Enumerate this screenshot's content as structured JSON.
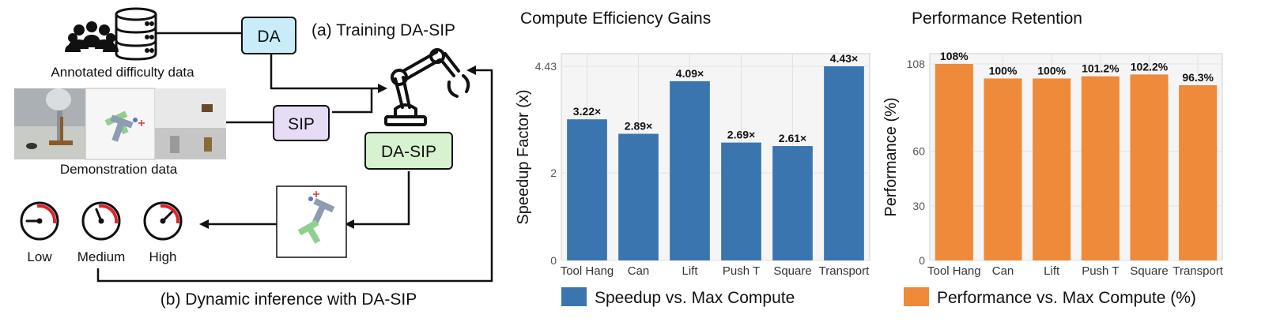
{
  "diagram": {
    "title_training": "(a) Training DA-SIP",
    "title_inference": "(b) Dynamic inference with DA-SIP",
    "annotated_label": "Annotated difficulty data",
    "demo_label": "Demonstration data",
    "box_da": "DA",
    "box_sip": "SIP",
    "box_dasip": "DA-SIP",
    "gauges": [
      {
        "label": "Low",
        "level": 0.2
      },
      {
        "label": "Medium",
        "level": 0.5
      },
      {
        "label": "High",
        "level": 0.8
      }
    ],
    "colors": {
      "da": "#c8ecf8",
      "sip": "#e6dcf5",
      "dasip": "#d6f2cf",
      "gauge_red": "#e0222a"
    }
  },
  "chart_data": [
    {
      "type": "bar",
      "title": "Compute Efficiency Gains",
      "ylabel": "Speedup Factor (x)",
      "xlabel": "",
      "categories": [
        "Tool Hang",
        "Can",
        "Lift",
        "Push T",
        "Square",
        "Transport"
      ],
      "values": [
        3.22,
        2.89,
        4.09,
        2.69,
        2.61,
        4.43
      ],
      "data_labels": [
        "3.22×",
        "2.89×",
        "4.09×",
        "2.69×",
        "2.61×",
        "4.43×"
      ],
      "ylim": [
        0,
        4.43
      ],
      "yticks": [
        0,
        2,
        4.43
      ],
      "ytick_labels": [
        "0",
        "2",
        "4.43"
      ],
      "legend": "Speedup vs. Max Compute",
      "legend_position": "bottom",
      "grid": true,
      "color": "#3a75b0"
    },
    {
      "type": "bar",
      "title": "Performance Retention",
      "ylabel": "Performance (%)",
      "xlabel": "",
      "categories": [
        "Tool Hang",
        "Can",
        "Lift",
        "Push T",
        "Square",
        "Transport"
      ],
      "values": [
        108,
        100,
        100,
        101.2,
        102.2,
        96.3
      ],
      "data_labels": [
        "108%",
        "100%",
        "100%",
        "101.2%",
        "102.2%",
        "96.3%"
      ],
      "ylim": [
        0,
        108
      ],
      "yticks": [
        0,
        30,
        60,
        108
      ],
      "ytick_labels": [
        "0",
        "30",
        "60",
        "108"
      ],
      "legend": "Performance vs. Max Compute (%)",
      "legend_position": "bottom",
      "grid": true,
      "color": "#ef8a3a"
    }
  ]
}
